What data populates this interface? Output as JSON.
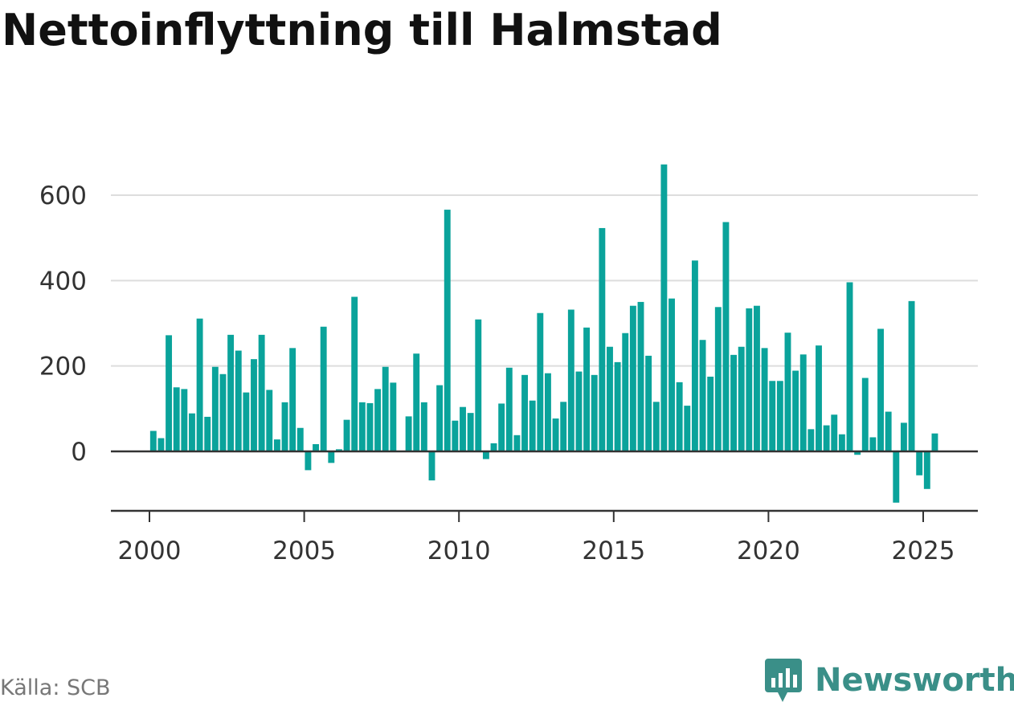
{
  "title": "Nettoinflyttning till Halmstad",
  "source": "Källa: SCB",
  "brand": {
    "name": "Newsworthy",
    "icon": "newsworthy-logo-icon"
  },
  "colors": {
    "bar": "#0aa39b",
    "grid": "#dddddd",
    "axis": "#333333",
    "brand": "#3a8f88"
  },
  "chart_data": {
    "type": "bar",
    "title": "Nettoinflyttning till Halmstad",
    "xlabel": "",
    "ylabel": "",
    "ylim": [
      -140,
      680
    ],
    "xlim": [
      1999.75,
      2027.0
    ],
    "grid": true,
    "legend": "none",
    "yticks": [
      0,
      200,
      400,
      600
    ],
    "xticks": [
      2000,
      2005,
      2010,
      2015,
      2020,
      2025
    ],
    "ytick_labels": [
      "0",
      "200",
      "400",
      "600"
    ],
    "xtick_labels": [
      "2000",
      "2005",
      "2010",
      "2015",
      "2020",
      "2025"
    ],
    "x": [
      "2000-Q1",
      "2000-Q2",
      "2000-Q3",
      "2000-Q4",
      "2001-Q1",
      "2001-Q2",
      "2001-Q3",
      "2001-Q4",
      "2002-Q1",
      "2002-Q2",
      "2002-Q3",
      "2002-Q4",
      "2003-Q1",
      "2003-Q2",
      "2003-Q3",
      "2003-Q4",
      "2004-Q1",
      "2004-Q2",
      "2004-Q3",
      "2004-Q4",
      "2005-Q1",
      "2005-Q2",
      "2005-Q3",
      "2005-Q4",
      "2006-Q1",
      "2006-Q2",
      "2006-Q3",
      "2006-Q4",
      "2007-Q1",
      "2007-Q2",
      "2007-Q3",
      "2007-Q4",
      "2008-Q1",
      "2008-Q2",
      "2008-Q3",
      "2008-Q4",
      "2009-Q1",
      "2009-Q2",
      "2009-Q3",
      "2009-Q4",
      "2010-Q1",
      "2010-Q2",
      "2010-Q3",
      "2010-Q4",
      "2011-Q1",
      "2011-Q2",
      "2011-Q3",
      "2011-Q4",
      "2012-Q1",
      "2012-Q2",
      "2012-Q3",
      "2012-Q4",
      "2013-Q1",
      "2013-Q2",
      "2013-Q3",
      "2013-Q4",
      "2014-Q1",
      "2014-Q2",
      "2014-Q3",
      "2014-Q4",
      "2015-Q1",
      "2015-Q2",
      "2015-Q3",
      "2015-Q4",
      "2016-Q1",
      "2016-Q2",
      "2016-Q3",
      "2016-Q4",
      "2017-Q1",
      "2017-Q2",
      "2017-Q3",
      "2017-Q4",
      "2018-Q1",
      "2018-Q2",
      "2018-Q3",
      "2018-Q4",
      "2019-Q1",
      "2019-Q2",
      "2019-Q3",
      "2019-Q4",
      "2020-Q1",
      "2020-Q2",
      "2020-Q3",
      "2020-Q4",
      "2021-Q1",
      "2021-Q2",
      "2021-Q3",
      "2021-Q4",
      "2022-Q1",
      "2022-Q2",
      "2022-Q3",
      "2022-Q4",
      "2023-Q1",
      "2023-Q2",
      "2023-Q3",
      "2023-Q4",
      "2024-Q1",
      "2024-Q2",
      "2024-Q3",
      "2024-Q4",
      "2025-Q1",
      "2025-Q2"
    ],
    "series": [
      {
        "values": [
          48,
          31,
          272,
          150,
          146,
          89,
          311,
          81,
          198,
          181,
          273,
          236,
          138,
          216,
          273,
          144,
          28,
          115,
          242,
          55,
          -44,
          17,
          292,
          -27,
          5,
          74,
          362,
          115,
          113,
          146,
          198,
          161,
          0,
          82,
          229,
          115,
          -68,
          155,
          566,
          72,
          104,
          90,
          309,
          -18,
          19,
          112,
          196,
          38,
          179,
          119,
          324,
          183,
          77,
          116,
          332,
          187,
          290,
          179,
          523,
          245,
          209,
          277,
          341,
          350,
          224,
          116,
          672,
          358,
          162,
          107,
          447,
          261,
          175,
          338,
          537,
          226,
          245,
          335,
          341,
          242,
          165,
          165,
          278,
          189,
          227,
          52,
          248,
          61,
          86,
          40,
          396,
          -8,
          172,
          33,
          287,
          93,
          -120,
          67,
          352,
          -56,
          -88,
          42
        ]
      }
    ]
  }
}
